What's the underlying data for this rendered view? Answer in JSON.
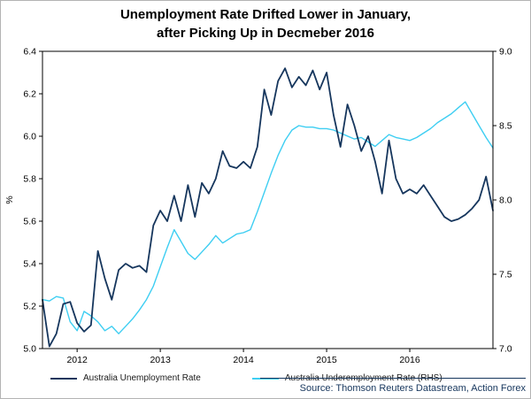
{
  "title": {
    "line1": "Unemployment Rate Drifted Lower in January,",
    "line2": "after Picking Up in Decmeber 2016"
  },
  "source": "Source: Thomson Reuters Datastream, Action Forex",
  "chart_data": {
    "type": "line",
    "title": "Unemployment Rate Drifted Lower in January, after Picking Up in Decmeber 2016",
    "left_axis": {
      "label": "%",
      "min": 5.0,
      "max": 6.4,
      "tick_step": 0.2
    },
    "right_axis": {
      "min": 7.0,
      "max": 9.0,
      "tick_step": 0.5
    },
    "x_tick_labels": [
      "2012",
      "2013",
      "2014",
      "2015",
      "2016"
    ],
    "grid": false,
    "legend_position": "bottom",
    "months": [
      "2011-08",
      "2011-09",
      "2011-10",
      "2011-11",
      "2011-12",
      "2012-01",
      "2012-02",
      "2012-03",
      "2012-04",
      "2012-05",
      "2012-06",
      "2012-07",
      "2012-08",
      "2012-09",
      "2012-10",
      "2012-11",
      "2012-12",
      "2013-01",
      "2013-02",
      "2013-03",
      "2013-04",
      "2013-05",
      "2013-06",
      "2013-07",
      "2013-08",
      "2013-09",
      "2013-10",
      "2013-11",
      "2013-12",
      "2014-01",
      "2014-02",
      "2014-03",
      "2014-04",
      "2014-05",
      "2014-06",
      "2014-07",
      "2014-08",
      "2014-09",
      "2014-10",
      "2014-11",
      "2014-12",
      "2015-01",
      "2015-02",
      "2015-03",
      "2015-04",
      "2015-05",
      "2015-06",
      "2015-07",
      "2015-08",
      "2015-09",
      "2015-10",
      "2015-11",
      "2015-12",
      "2016-01",
      "2016-02",
      "2016-03",
      "2016-04",
      "2016-05",
      "2016-06",
      "2016-07",
      "2016-08",
      "2016-09",
      "2016-10",
      "2016-11",
      "2016-12",
      "2017-01"
    ],
    "series": [
      {
        "name": "Australia Unemployment Rate",
        "axis": "left",
        "color": "#16365d",
        "values": [
          5.23,
          5.01,
          5.07,
          5.21,
          5.22,
          5.12,
          5.08,
          5.11,
          5.46,
          5.33,
          5.23,
          5.37,
          5.4,
          5.38,
          5.39,
          5.36,
          5.58,
          5.65,
          5.6,
          5.72,
          5.6,
          5.77,
          5.62,
          5.78,
          5.73,
          5.8,
          5.93,
          5.86,
          5.85,
          5.88,
          5.85,
          5.95,
          6.22,
          6.1,
          6.26,
          6.32,
          6.23,
          6.28,
          6.24,
          6.31,
          6.22,
          6.3,
          6.1,
          5.95,
          6.15,
          6.05,
          5.93,
          6.0,
          5.88,
          5.73,
          5.98,
          5.8,
          5.73,
          5.75,
          5.73,
          5.77,
          5.72,
          5.67,
          5.62,
          5.6,
          5.61,
          5.63,
          5.66,
          5.7,
          5.81,
          5.65
        ]
      },
      {
        "name": "Australia Underemployment Rate (RHS)",
        "axis": "right",
        "color": "#3ecef2",
        "values": [
          7.33,
          7.32,
          7.35,
          7.34,
          7.18,
          7.12,
          7.25,
          7.22,
          7.18,
          7.12,
          7.15,
          7.1,
          7.15,
          7.2,
          7.26,
          7.33,
          7.42,
          7.55,
          7.68,
          7.8,
          7.72,
          7.64,
          7.6,
          7.65,
          7.7,
          7.76,
          7.71,
          7.74,
          7.77,
          7.78,
          7.8,
          7.92,
          8.05,
          8.18,
          8.3,
          8.4,
          8.47,
          8.5,
          8.49,
          8.49,
          8.48,
          8.48,
          8.47,
          8.45,
          8.43,
          8.41,
          8.42,
          8.39,
          8.36,
          8.4,
          8.44,
          8.42,
          8.41,
          8.4,
          8.42,
          8.45,
          8.48,
          8.52,
          8.55,
          8.58,
          8.62,
          8.66,
          8.58,
          8.5,
          8.42,
          8.35
        ]
      }
    ]
  }
}
